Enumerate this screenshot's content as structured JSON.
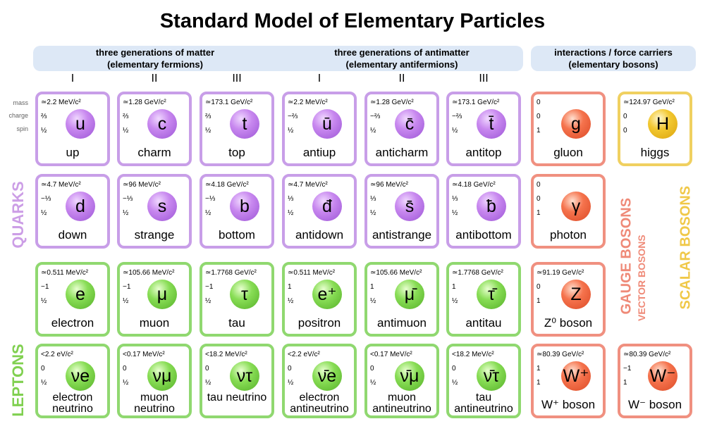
{
  "title": "Standard Model of Elementary Particles",
  "headers": {
    "matter": [
      "three generations of matter",
      "(elementary fermions)"
    ],
    "antimatter": [
      "three generations of antimatter",
      "(elementary antifermions)"
    ],
    "bosons": [
      "interactions / force carriers",
      "(elementary bosons)"
    ]
  },
  "generations": [
    "I",
    "II",
    "III",
    "I",
    "II",
    "III"
  ],
  "row_labels": [
    "mass",
    "charge",
    "spin"
  ],
  "side_labels": {
    "quarks": "QUARKS",
    "leptons": "LEPTONS",
    "gauge_bosons": "GAUGE BOSONS",
    "vector_bosons": "VECTOR BOSONS",
    "scalar_bosons": "SCALAR BOSONS"
  },
  "colors": {
    "quark": "#c89ee8",
    "lepton": "#90d870",
    "gauge": "#f09080",
    "scalar": "#f0d060"
  },
  "particles": [
    {
      "id": "up",
      "mass": "≃2.2 MeV/c²",
      "charge": "⅔",
      "spin": "½",
      "symbol": "u",
      "name": "up"
    },
    {
      "id": "charm",
      "mass": "≃1.28 GeV/c²",
      "charge": "⅔",
      "spin": "½",
      "symbol": "c",
      "name": "charm"
    },
    {
      "id": "top",
      "mass": "≃173.1 GeV/c²",
      "charge": "⅔",
      "spin": "½",
      "symbol": "t",
      "name": "top"
    },
    {
      "id": "antiup",
      "mass": "≃2.2 MeV/c²",
      "charge": "−⅔",
      "spin": "½",
      "symbol": "ū",
      "name": "antiup"
    },
    {
      "id": "anticharm",
      "mass": "≃1.28 GeV/c²",
      "charge": "−⅔",
      "spin": "½",
      "symbol": "c̄",
      "name": "anticharm"
    },
    {
      "id": "antitop",
      "mass": "≃173.1 GeV/c²",
      "charge": "−⅔",
      "spin": "½",
      "symbol": "t̄",
      "name": "antitop"
    },
    {
      "id": "gluon",
      "mass": "0",
      "charge": "0",
      "spin": "1",
      "symbol": "g",
      "name": "gluon"
    },
    {
      "id": "higgs",
      "mass": "≃124.97 GeV/c²",
      "charge": "0",
      "spin": "0",
      "symbol": "H",
      "name": "higgs"
    },
    {
      "id": "down",
      "mass": "≃4.7 MeV/c²",
      "charge": "−⅓",
      "spin": "½",
      "symbol": "d",
      "name": "down"
    },
    {
      "id": "strange",
      "mass": "≃96 MeV/c²",
      "charge": "−⅓",
      "spin": "½",
      "symbol": "s",
      "name": "strange"
    },
    {
      "id": "bottom",
      "mass": "≃4.18 GeV/c²",
      "charge": "−⅓",
      "spin": "½",
      "symbol": "b",
      "name": "bottom"
    },
    {
      "id": "antidown",
      "mass": "≃4.7 MeV/c²",
      "charge": "⅓",
      "spin": "½",
      "symbol": "đ",
      "name": "antidown"
    },
    {
      "id": "antistrange",
      "mass": "≃96 MeV/c²",
      "charge": "⅓",
      "spin": "½",
      "symbol": "s̄",
      "name": "antistrange"
    },
    {
      "id": "antibottom",
      "mass": "≃4.18 GeV/c²",
      "charge": "⅓",
      "spin": "½",
      "symbol": "ƀ",
      "name": "antibottom"
    },
    {
      "id": "photon",
      "mass": "0",
      "charge": "0",
      "spin": "1",
      "symbol": "γ",
      "name": "photon"
    },
    {
      "id": "electron",
      "mass": "≃0.511 MeV/c²",
      "charge": "−1",
      "spin": "½",
      "symbol": "e",
      "name": "electron"
    },
    {
      "id": "muon",
      "mass": "≃105.66 MeV/c²",
      "charge": "−1",
      "spin": "½",
      "symbol": "μ",
      "name": "muon"
    },
    {
      "id": "tau",
      "mass": "≃1.7768 GeV/c²",
      "charge": "−1",
      "spin": "½",
      "symbol": "τ",
      "name": "tau"
    },
    {
      "id": "positron",
      "mass": "≃0.511 MeV/c²",
      "charge": "1",
      "spin": "½",
      "symbol": "e⁺",
      "name": "positron"
    },
    {
      "id": "antimuon",
      "mass": "≃105.66 MeV/c²",
      "charge": "1",
      "spin": "½",
      "symbol": "μ̄",
      "name": "antimuon"
    },
    {
      "id": "antitau",
      "mass": "≃1.7768 GeV/c²",
      "charge": "1",
      "spin": "½",
      "symbol": "τ̄",
      "name": "antitau"
    },
    {
      "id": "z",
      "mass": "≃91.19 GeV/c²",
      "charge": "0",
      "spin": "1",
      "symbol": "Z",
      "name": "Z⁰ boson"
    },
    {
      "id": "ve",
      "mass": "<2.2 eV/c²",
      "charge": "0",
      "spin": "½",
      "symbol": "νe",
      "name": "electron neutrino"
    },
    {
      "id": "vmu",
      "mass": "<0.17 MeV/c²",
      "charge": "0",
      "spin": "½",
      "symbol": "νμ",
      "name": "muon neutrino"
    },
    {
      "id": "vtau",
      "mass": "<18.2 MeV/c²",
      "charge": "0",
      "spin": "½",
      "symbol": "ντ",
      "name": "tau neutrino"
    },
    {
      "id": "ave",
      "mass": "<2.2 eV/c²",
      "charge": "0",
      "spin": "½",
      "symbol": "ν̄e",
      "name": "electron antineutrino"
    },
    {
      "id": "avmu",
      "mass": "<0.17 MeV/c²",
      "charge": "0",
      "spin": "½",
      "symbol": "ν̄μ",
      "name": "muon antineutrino"
    },
    {
      "id": "avtau",
      "mass": "<18.2 MeV/c²",
      "charge": "0",
      "spin": "½",
      "symbol": "ν̄τ",
      "name": "tau antineutrino"
    },
    {
      "id": "wplus",
      "mass": "≃80.39 GeV/c²",
      "charge": "1",
      "spin": "1",
      "symbol": "W⁺",
      "name": "W⁺ boson"
    },
    {
      "id": "wminus",
      "mass": "≃80.39 GeV/c²",
      "charge": "−1",
      "spin": "1",
      "symbol": "W⁻",
      "name": "W⁻ boson"
    }
  ]
}
